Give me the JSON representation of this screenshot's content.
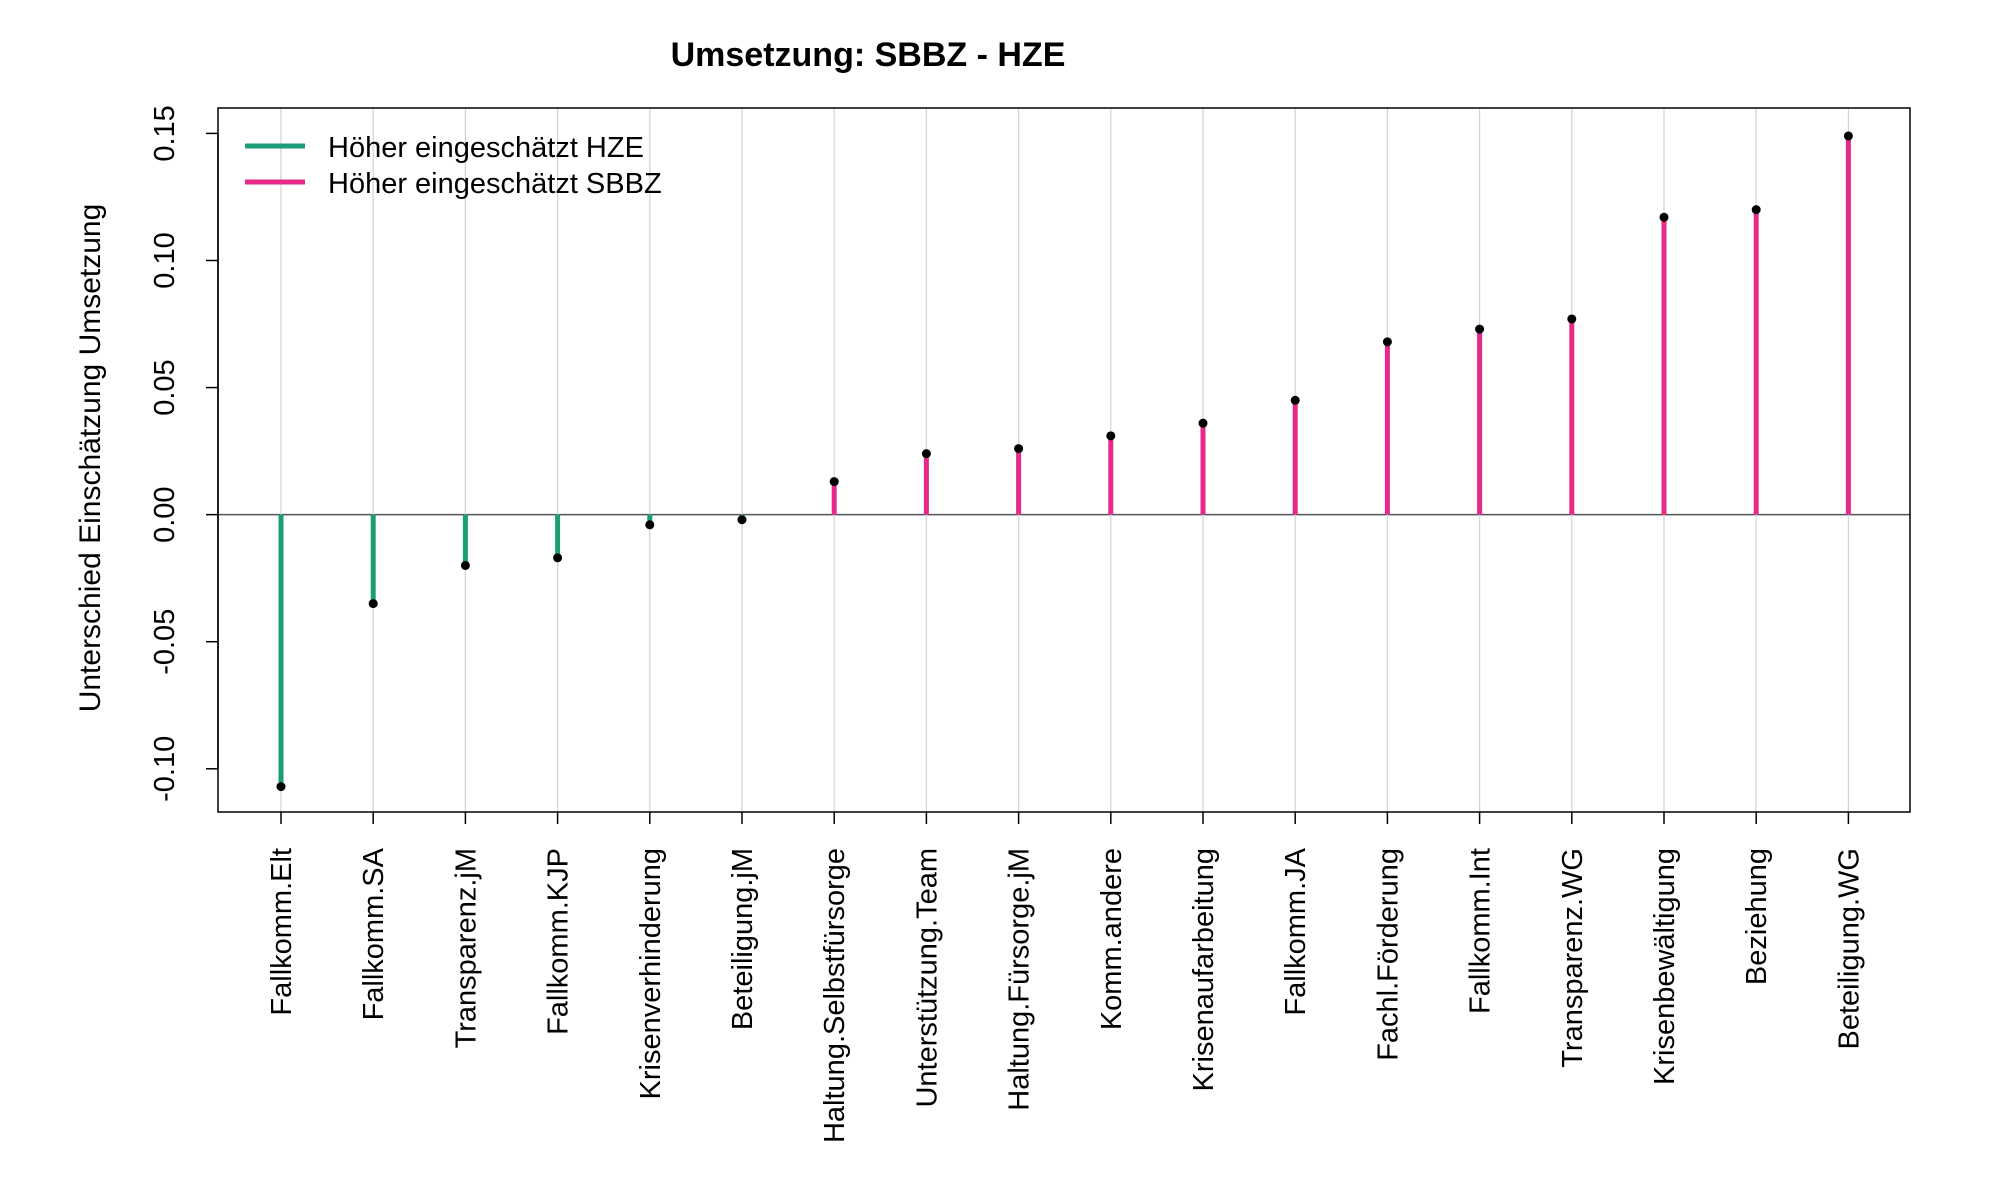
{
  "chart_data": {
    "type": "lollipop",
    "title": "Umsetzung: SBBZ - HZE",
    "xlabel": "",
    "ylabel": "Unterschied Einschätzung Umsetzung",
    "ylim": [
      -0.117,
      0.16
    ],
    "yticks": [
      -0.1,
      -0.05,
      0.0,
      0.05,
      0.1,
      0.15
    ],
    "ytick_labels": [
      "-0.10",
      "-0.05",
      "0.00",
      "0.05",
      "0.10",
      "0.15"
    ],
    "grid": "vertical",
    "legend_position": "top-left",
    "categories": [
      "Fallkomm.Elt",
      "Fallkomm.SA",
      "Transparenz.jM",
      "Fallkomm.KJP",
      "Krisenverhinderung",
      "Beteiligung.jM",
      "Haltung.Selbstfürsorge",
      "Unterstützung.Team",
      "Haltung.Fürsorge.jM",
      "Komm.andere",
      "Krisenaufarbeitung",
      "Fallkomm.JA",
      "Fachl.Förderung",
      "Fallkomm.Int",
      "Transparenz.WG",
      "Krisenbewältigung",
      "Beziehung",
      "Beteiligung.WG"
    ],
    "values": [
      -0.107,
      -0.035,
      -0.02,
      -0.017,
      -0.004,
      -0.002,
      0.013,
      0.024,
      0.026,
      0.031,
      0.036,
      0.045,
      0.068,
      0.073,
      0.077,
      0.117,
      0.12,
      0.149
    ],
    "series": [
      {
        "name": "Höher eingeschätzt HZE",
        "color": "#1b9e77"
      },
      {
        "name": "Höher eingeschätzt SBBZ",
        "color": "#e7298a"
      }
    ]
  }
}
